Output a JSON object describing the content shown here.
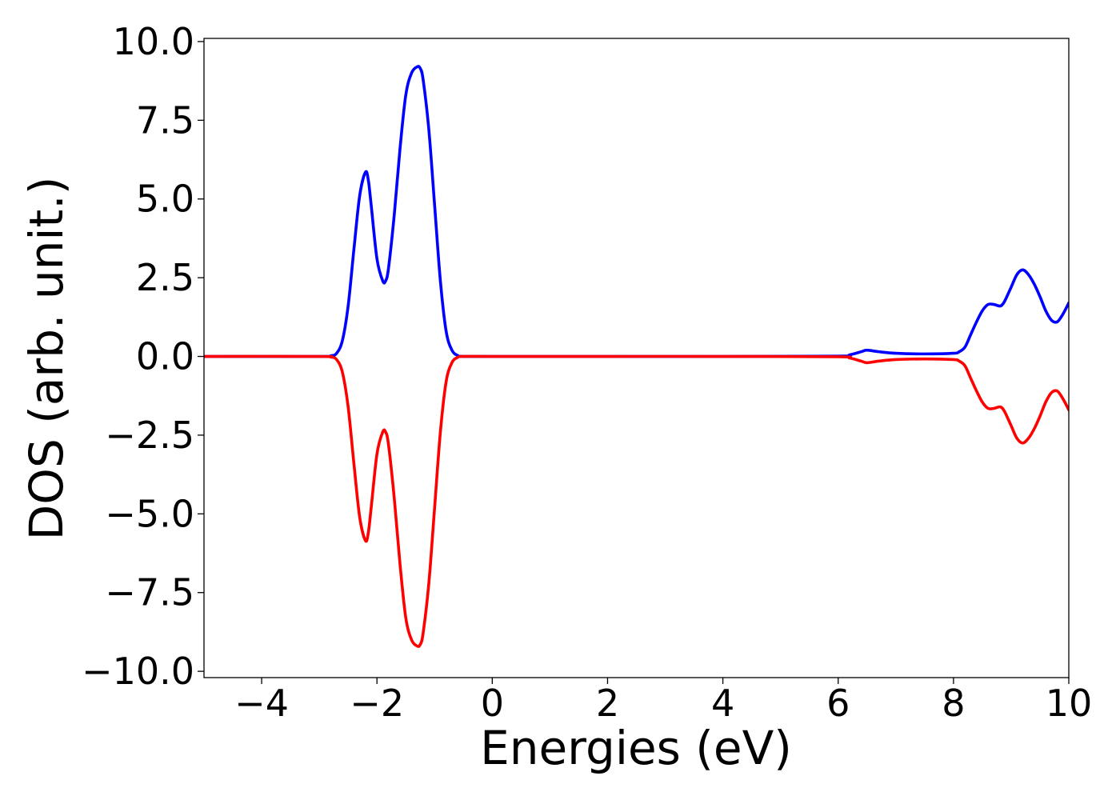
{
  "chart_data": {
    "type": "line",
    "title": "",
    "xlabel": "Energies (eV)",
    "ylabel": "DOS (arb. unit.)",
    "xlim": [
      -5,
      10
    ],
    "ylim": [
      -10.2,
      10.1
    ],
    "grid": false,
    "legend": "none",
    "x_ticks": [
      -4,
      -2,
      0,
      2,
      4,
      6,
      8,
      10
    ],
    "x_tick_labels": [
      "−4",
      "−2",
      "0",
      "2",
      "4",
      "6",
      "8",
      "10"
    ],
    "y_ticks": [
      -10,
      -7.5,
      -5,
      -2.5,
      0,
      2.5,
      5,
      7.5,
      10
    ],
    "y_tick_labels": [
      "−10.0",
      "−7.5",
      "−5.0",
      "−2.5",
      "0.0",
      "2.5",
      "5.0",
      "7.5",
      "10.0"
    ],
    "series": [
      {
        "color": "#0000ff",
        "x": [
          -5,
          -3.0,
          -2.8,
          -2.7,
          -2.6,
          -2.5,
          -2.4,
          -2.3,
          -2.2,
          -2.15,
          -2.1,
          -2.0,
          -1.9,
          -1.85,
          -1.8,
          -1.7,
          -1.6,
          -1.5,
          -1.4,
          -1.3,
          -1.25,
          -1.2,
          -1.1,
          -1.0,
          -0.9,
          -0.8,
          -0.7,
          -0.6,
          -0.5,
          0,
          2,
          4,
          6.0,
          6.2,
          6.4,
          6.5,
          6.7,
          7.0,
          7.5,
          8.0,
          8.1,
          8.2,
          8.3,
          8.4,
          8.5,
          8.6,
          8.7,
          8.8,
          8.85,
          8.9,
          9.0,
          9.1,
          9.2,
          9.3,
          9.4,
          9.5,
          9.6,
          9.7,
          9.8,
          9.9,
          10.0
        ],
        "y": [
          0,
          0,
          0.02,
          0.1,
          0.5,
          1.6,
          3.4,
          5.1,
          5.85,
          5.6,
          4.8,
          3.1,
          2.4,
          2.4,
          2.8,
          4.5,
          6.6,
          8.3,
          9.0,
          9.2,
          9.15,
          8.8,
          7.2,
          4.8,
          2.4,
          0.8,
          0.2,
          0.03,
          0,
          0,
          0,
          0,
          0.01,
          0.05,
          0.15,
          0.2,
          0.15,
          0.1,
          0.08,
          0.1,
          0.15,
          0.3,
          0.7,
          1.1,
          1.45,
          1.65,
          1.65,
          1.6,
          1.65,
          1.8,
          2.2,
          2.6,
          2.75,
          2.6,
          2.3,
          1.9,
          1.45,
          1.15,
          1.1,
          1.35,
          1.7
        ]
      },
      {
        "color": "#ff0000",
        "x": [
          -5,
          -3.0,
          -2.8,
          -2.7,
          -2.6,
          -2.5,
          -2.4,
          -2.3,
          -2.2,
          -2.15,
          -2.1,
          -2.0,
          -1.9,
          -1.85,
          -1.8,
          -1.7,
          -1.6,
          -1.5,
          -1.4,
          -1.3,
          -1.25,
          -1.2,
          -1.1,
          -1.0,
          -0.9,
          -0.8,
          -0.7,
          -0.6,
          -0.5,
          0,
          2,
          4,
          6.0,
          6.2,
          6.4,
          6.5,
          6.7,
          7.0,
          7.5,
          8.0,
          8.1,
          8.2,
          8.3,
          8.4,
          8.5,
          8.6,
          8.7,
          8.8,
          8.85,
          8.9,
          9.0,
          9.1,
          9.2,
          9.3,
          9.4,
          9.5,
          9.6,
          9.7,
          9.8,
          9.9,
          10.0
        ],
        "y": [
          0,
          0,
          -0.02,
          -0.1,
          -0.5,
          -1.6,
          -3.4,
          -5.1,
          -5.85,
          -5.6,
          -4.8,
          -3.1,
          -2.4,
          -2.4,
          -2.8,
          -4.5,
          -6.6,
          -8.3,
          -9.0,
          -9.2,
          -9.15,
          -8.8,
          -7.2,
          -4.8,
          -2.4,
          -0.8,
          -0.2,
          -0.03,
          0,
          0,
          0,
          0,
          -0.01,
          -0.05,
          -0.15,
          -0.2,
          -0.15,
          -0.1,
          -0.08,
          -0.1,
          -0.15,
          -0.3,
          -0.7,
          -1.1,
          -1.45,
          -1.65,
          -1.65,
          -1.6,
          -1.65,
          -1.8,
          -2.2,
          -2.6,
          -2.75,
          -2.6,
          -2.3,
          -1.9,
          -1.45,
          -1.15,
          -1.1,
          -1.35,
          -1.7
        ]
      }
    ]
  }
}
